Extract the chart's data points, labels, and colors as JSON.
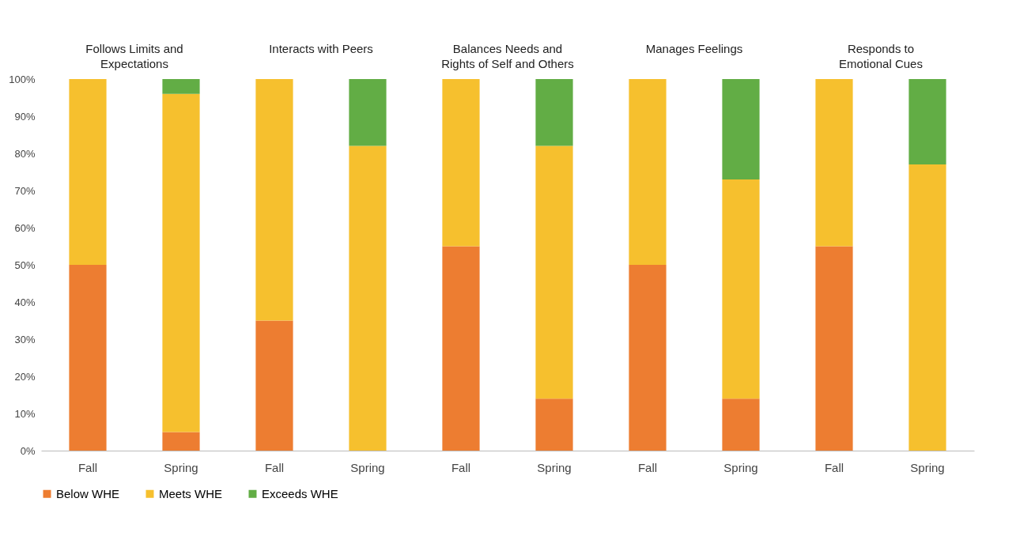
{
  "chart_data": {
    "type": "bar",
    "stacked": true,
    "categories": [
      "Fall",
      "Spring",
      "Fall",
      "Spring",
      "Fall",
      "Spring",
      "Fall",
      "Spring",
      "Fall",
      "Spring"
    ],
    "series": [
      {
        "name": "Below WHE",
        "color": "#ed7d31",
        "values": [
          50,
          5,
          35,
          0,
          55,
          14,
          50,
          14,
          55,
          0
        ]
      },
      {
        "name": "Meets WHE",
        "color": "#f6c02e",
        "values": [
          50,
          91,
          65,
          82,
          45,
          68,
          50,
          59,
          45,
          77
        ]
      },
      {
        "name": "Exceeds WHE",
        "color": "#62ad45",
        "values": [
          0,
          4,
          0,
          18,
          0,
          18,
          0,
          27,
          0,
          23
        ]
      }
    ],
    "annotations": [
      "Follows Limits and\nExpectations",
      "Interacts with Peers",
      "Balances Needs and\nRights of Self and Others",
      "Manages Feelings",
      "Responds to\nEmotional Cues"
    ],
    "ylim": [
      0,
      100
    ],
    "yticks": [
      {
        "value": 0,
        "label": "0%"
      },
      {
        "value": 10,
        "label": "10%"
      },
      {
        "value": 20,
        "label": "20%"
      },
      {
        "value": 30,
        "label": "30%"
      },
      {
        "value": 40,
        "label": "40%"
      },
      {
        "value": 50,
        "label": "50%"
      },
      {
        "value": 60,
        "label": "60%"
      },
      {
        "value": 70,
        "label": "70%"
      },
      {
        "value": 80,
        "label": "80%"
      },
      {
        "value": 90,
        "label": "90%"
      },
      {
        "value": 100,
        "label": "100%"
      }
    ],
    "grid": false,
    "legend": "bottom"
  }
}
